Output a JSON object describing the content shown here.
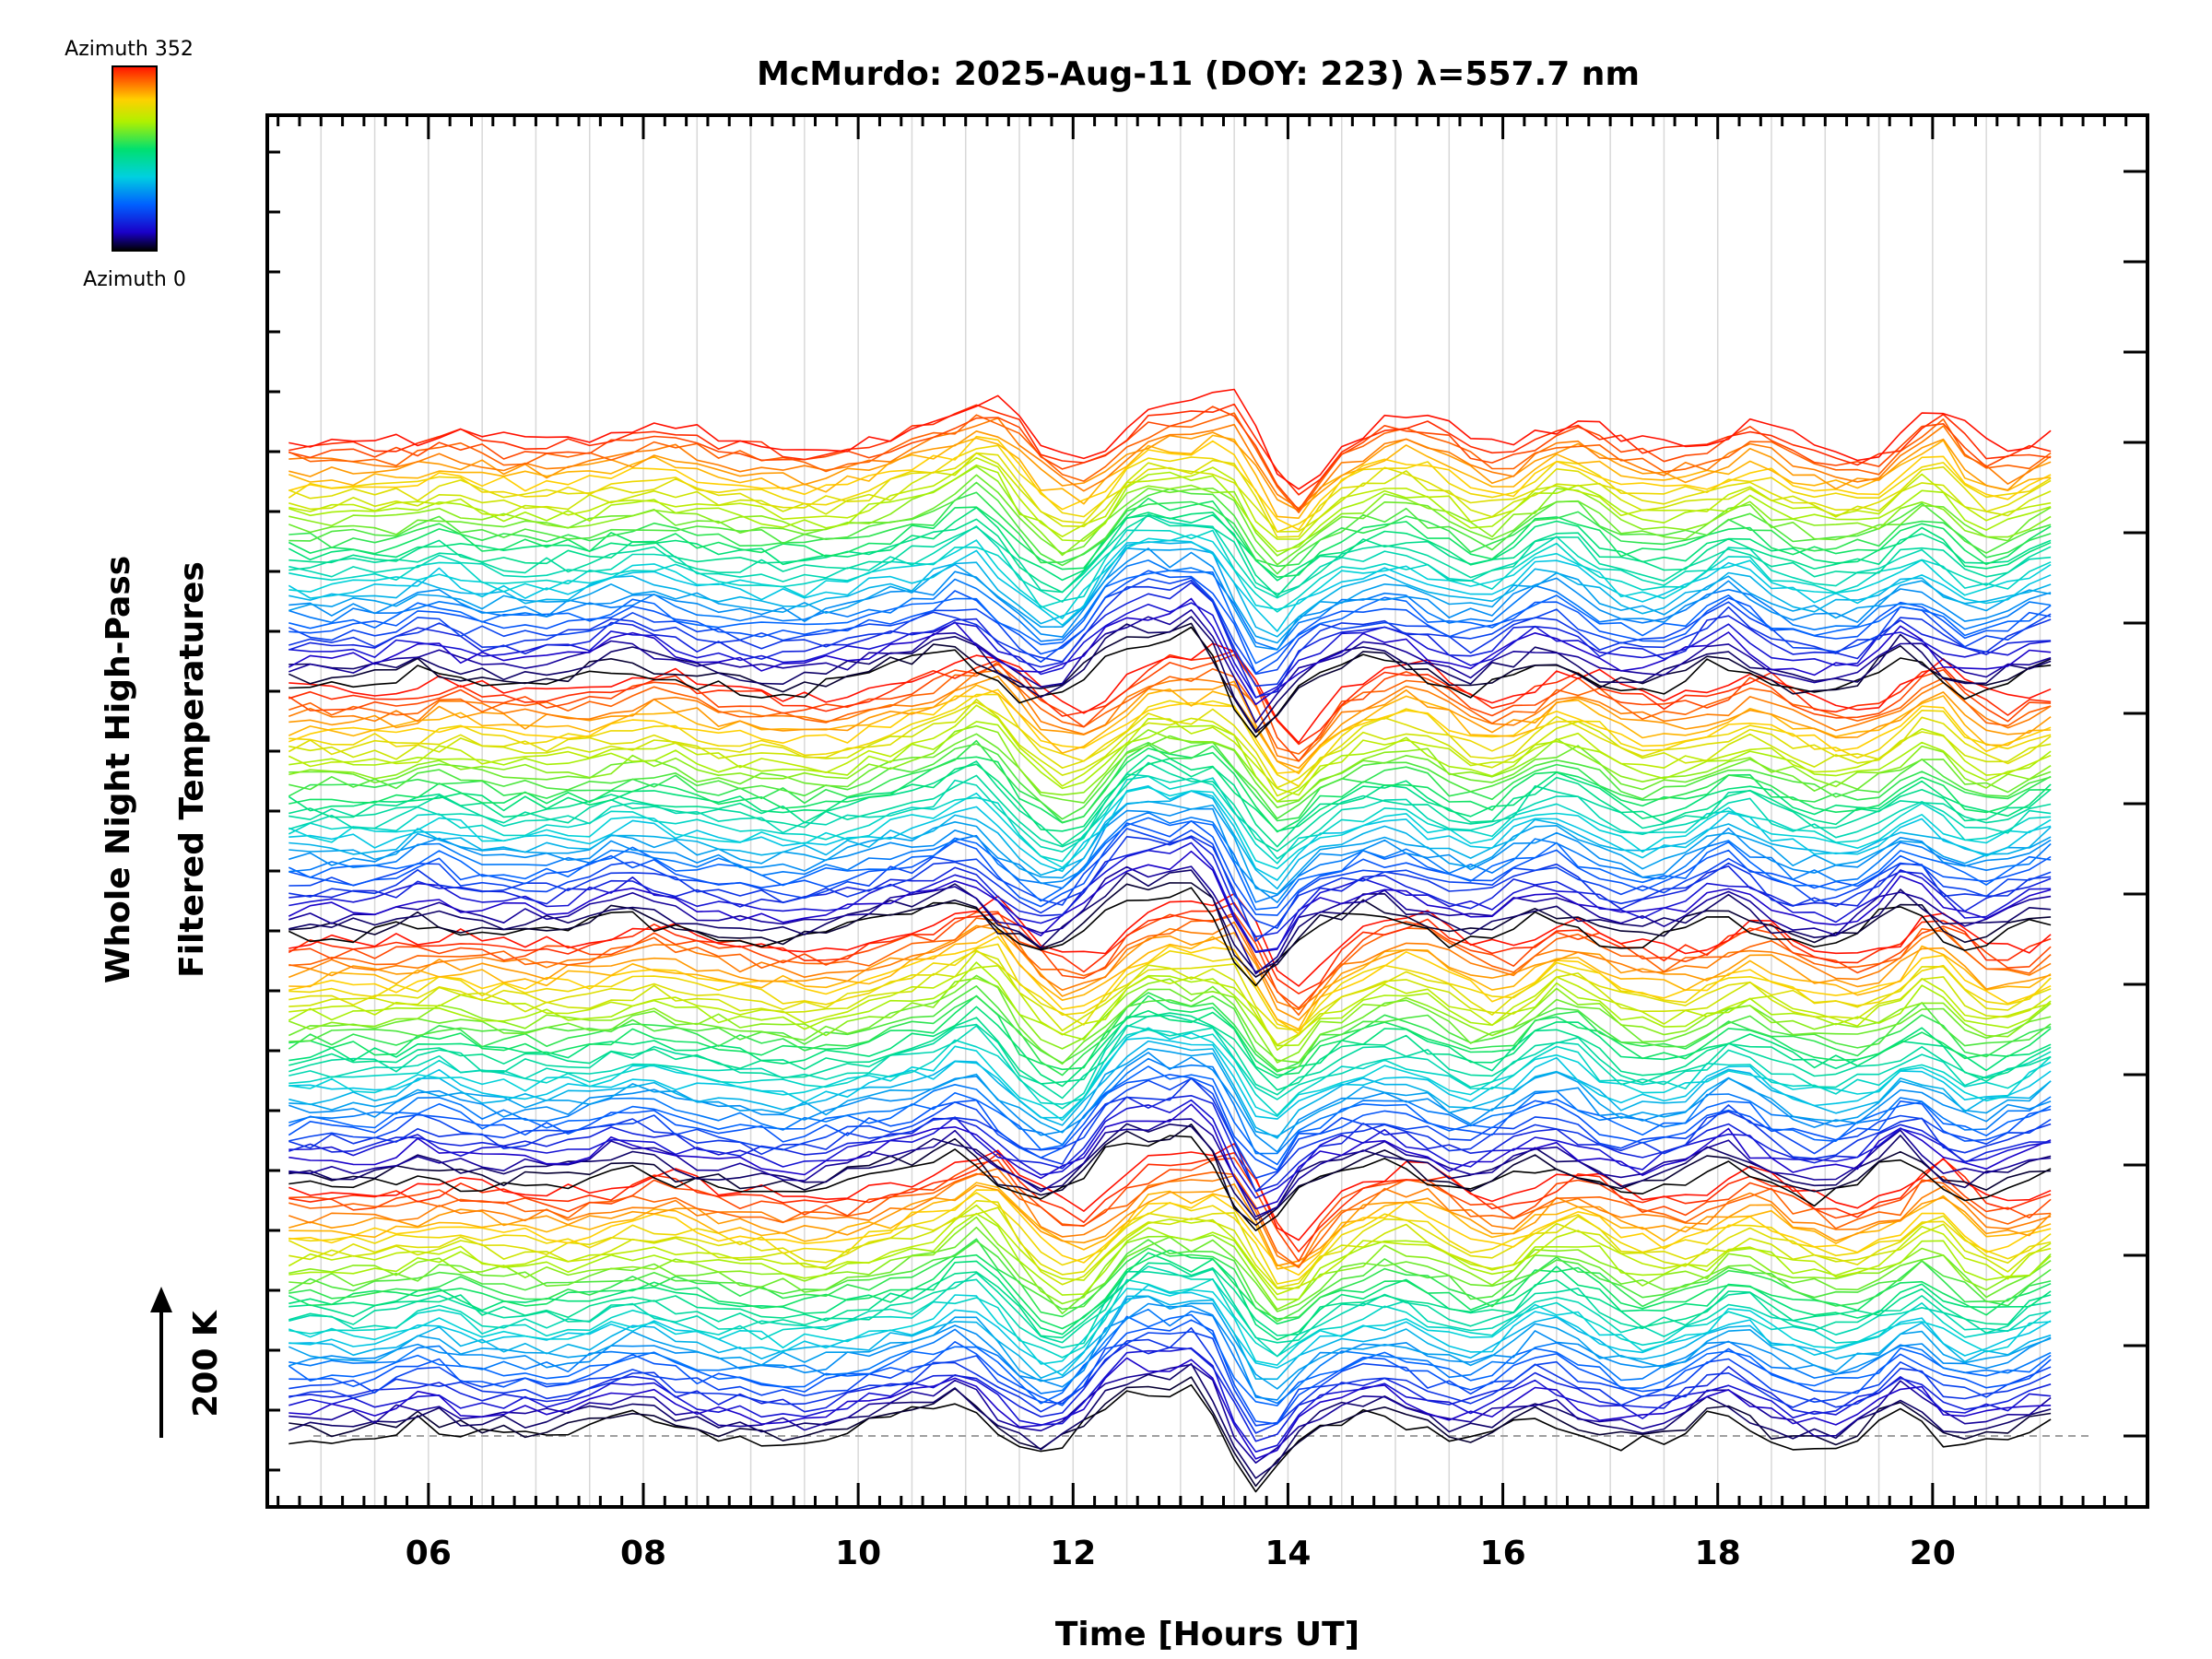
{
  "chart_data": {
    "type": "line",
    "title": "McMurdo: 2025-Aug-11 (DOY: 223) λ=557.7 nm",
    "xlabel": "Time [Hours UT]",
    "ylabel_line1": "Whole Night High-Pass",
    "ylabel_line2": "Filtered Temperatures",
    "scale_bar_label": "200 K",
    "xlim": [
      4.5,
      22.0
    ],
    "x_ticks": [
      6,
      8,
      10,
      12,
      14,
      16,
      18,
      20
    ],
    "x_tick_labels": [
      "06",
      "08",
      "10",
      "12",
      "14",
      "16",
      "18",
      "20"
    ],
    "colorbar": {
      "top_label": "Azimuth 352",
      "bottom_label": "Azimuth 0",
      "colormap": "rainbow",
      "azimuth_min": 0,
      "azimuth_max": 352
    },
    "series_count": 160,
    "azimuth_step": 2.2,
    "x_start": 4.7,
    "x_end": 21.15,
    "x_step": 0.2,
    "series_offset_K": 32,
    "base_line_K": 0,
    "features": [
      {
        "t": 5.9,
        "amp": 18,
        "w": 0.2
      },
      {
        "t": 7.8,
        "amp": 22,
        "w": 0.3
      },
      {
        "t": 9.3,
        "amp": -10,
        "w": 0.3
      },
      {
        "t": 10.5,
        "amp": 25,
        "w": 0.4
      },
      {
        "t": 10.9,
        "amp": 40,
        "w": 0.2
      },
      {
        "t": 11.7,
        "amp": -35,
        "w": 0.25
      },
      {
        "t": 12.5,
        "amp": 60,
        "w": 0.3
      },
      {
        "t": 13.1,
        "amp": 55,
        "w": 0.2
      },
      {
        "t": 13.7,
        "amp": -60,
        "w": 0.2
      },
      {
        "t": 14.8,
        "amp": 30,
        "w": 0.35
      },
      {
        "t": 15.6,
        "amp": -15,
        "w": 0.3
      },
      {
        "t": 16.3,
        "amp": 35,
        "w": 0.3
      },
      {
        "t": 17.1,
        "amp": -12,
        "w": 0.3
      },
      {
        "t": 18.0,
        "amp": 30,
        "w": 0.2
      },
      {
        "t": 18.9,
        "amp": -15,
        "w": 0.3
      },
      {
        "t": 19.7,
        "amp": 40,
        "w": 0.2
      },
      {
        "t": 20.3,
        "amp": -15,
        "w": 0.3
      },
      {
        "t": 21.1,
        "amp": 25,
        "w": 0.3
      }
    ]
  }
}
